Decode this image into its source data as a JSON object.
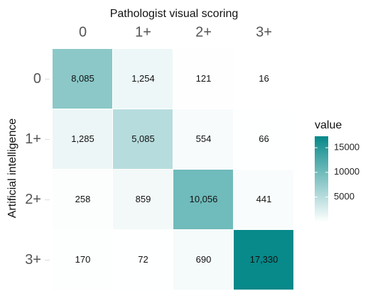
{
  "chart_data": {
    "type": "heatmap",
    "x_title": "Pathologist visual scoring",
    "y_title": "Artificial intelligence",
    "x_categories": [
      "0",
      "1+",
      "2+",
      "3+"
    ],
    "y_categories": [
      "0",
      "1+",
      "2+",
      "3+"
    ],
    "values": [
      [
        8085,
        1254,
        121,
        16
      ],
      [
        1285,
        5085,
        554,
        66
      ],
      [
        258,
        859,
        10056,
        441
      ],
      [
        170,
        72,
        690,
        17330
      ]
    ],
    "value_labels": [
      [
        "8,085",
        "1,254",
        "121",
        "16"
      ],
      [
        "1,285",
        "5,085",
        "554",
        "66"
      ],
      [
        "258",
        "859",
        "10,056",
        "441"
      ],
      [
        "170",
        "72",
        "690",
        "17,330"
      ]
    ],
    "legend_title": "value",
    "colorbar_ticks": [
      5000,
      10000,
      15000
    ],
    "color_low": "#ffffff",
    "color_high": "#08898a"
  }
}
